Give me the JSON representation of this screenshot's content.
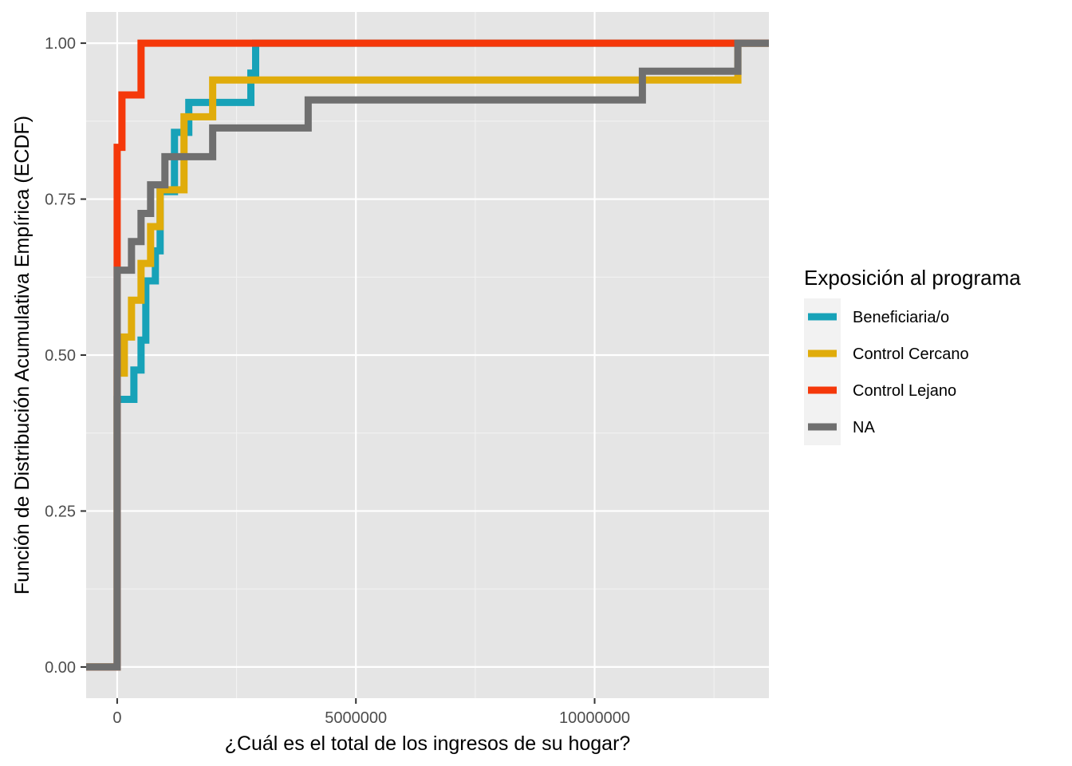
{
  "chart_data": {
    "type": "line",
    "subtype": "ecdf-step",
    "title": "",
    "xlabel": "¿Cuál es el total de los ingresos de su hogar?",
    "ylabel": "Función de Distribución Acumulativa Empírica (ECDF)",
    "xlim": [
      -650000,
      13650000
    ],
    "ylim": [
      -0.05,
      1.05
    ],
    "x_ticks": [
      0,
      5000000,
      10000000
    ],
    "x_tick_labels": [
      "0",
      "5000000",
      "10000000"
    ],
    "y_ticks": [
      0,
      0.25,
      0.5,
      0.75,
      1
    ],
    "y_tick_labels": [
      "0.00",
      "0.25",
      "0.50",
      "0.75",
      "1.00"
    ],
    "grid": true,
    "legend": {
      "title": "Exposición al programa",
      "placement": "right"
    },
    "series": [
      {
        "name": "Beneficiaria/o",
        "color": "#17a2b8",
        "x": [
          0,
          350000,
          500000,
          600000,
          800000,
          900000,
          1200000,
          1500000,
          2800000,
          2900000
        ],
        "y": [
          0.429,
          0.476,
          0.524,
          0.619,
          0.667,
          0.762,
          0.857,
          0.905,
          0.952,
          1.0
        ]
      },
      {
        "name": "Control Cercano",
        "color": "#e0ac0b",
        "x": [
          0,
          150000,
          300000,
          500000,
          700000,
          900000,
          1400000,
          2000000,
          13000000
        ],
        "y": [
          0.471,
          0.529,
          0.588,
          0.647,
          0.706,
          0.765,
          0.882,
          0.941,
          1.0
        ]
      },
      {
        "name": "Control Lejano",
        "color": "#f5380a",
        "x": [
          0,
          100000,
          500000
        ],
        "y": [
          0.833,
          0.917,
          1.0
        ]
      },
      {
        "name": "NA",
        "color": "#6f6f6f",
        "x": [
          0,
          300000,
          500000,
          700000,
          1000000,
          2000000,
          4000000,
          11000000,
          13000000
        ],
        "y": [
          0.636,
          0.682,
          0.727,
          0.773,
          0.818,
          0.864,
          0.909,
          0.955,
          1.0
        ]
      }
    ]
  }
}
